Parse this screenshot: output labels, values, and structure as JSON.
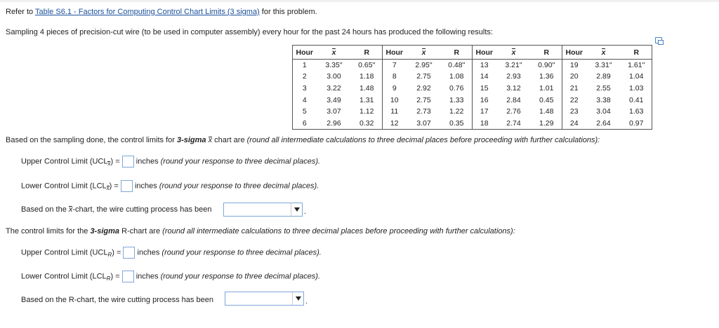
{
  "intro": {
    "prefix": "Refer to",
    "link": "Table S6.1 - Factors for Computing Control Chart Limits (3 sigma)",
    "suffix": "for this problem."
  },
  "problem": "Sampling 4 pieces of precision-cut wire (to be used in computer assembly) every hour for the past 24 hours has produced the following results:",
  "table": {
    "headers": [
      "Hour",
      "x",
      "R"
    ],
    "groups": [
      [
        [
          "1",
          "3.35\"",
          "0.65\""
        ],
        [
          "2",
          "3.00",
          "1.18"
        ],
        [
          "3",
          "3.22",
          "1.48"
        ],
        [
          "4",
          "3.49",
          "1.31"
        ],
        [
          "5",
          "3.07",
          "1.12"
        ],
        [
          "6",
          "2.96",
          "0.32"
        ]
      ],
      [
        [
          "7",
          "2.95\"",
          "0.48\""
        ],
        [
          "8",
          "2.75",
          "1.08"
        ],
        [
          "9",
          "2.92",
          "0.76"
        ],
        [
          "10",
          "2.75",
          "1.33"
        ],
        [
          "11",
          "2.73",
          "1.22"
        ],
        [
          "12",
          "3.07",
          "0.35"
        ]
      ],
      [
        [
          "13",
          "3.21\"",
          "0.90\""
        ],
        [
          "14",
          "2.93",
          "1.36"
        ],
        [
          "15",
          "3.12",
          "1.01"
        ],
        [
          "16",
          "2.84",
          "0.45"
        ],
        [
          "17",
          "2.76",
          "1.48"
        ],
        [
          "18",
          "2.74",
          "1.29"
        ]
      ],
      [
        [
          "19",
          "3.31\"",
          "1.61\""
        ],
        [
          "20",
          "2.89",
          "1.04"
        ],
        [
          "21",
          "2.55",
          "1.03"
        ],
        [
          "22",
          "3.38",
          "0.41"
        ],
        [
          "23",
          "3.04",
          "1.63"
        ],
        [
          "24",
          "2.64",
          "0.97"
        ]
      ]
    ]
  },
  "xchart": {
    "intro_a": "Based on the sampling done, the control limits for ",
    "intro_b": "3-sigma",
    "intro_x": "x",
    "intro_c": " chart are ",
    "intro_d": "(round all intermediate calculations to three decimal places before proceeding with further calculations):",
    "ucl_label": "Upper Control Limit (UCL",
    "ucl_sub": "x",
    "lcl_label": "Lower Control Limit (LCL",
    "lcl_sub": "x",
    "close_eq": ") =",
    "units": "inches",
    "hint": "(round your response to three decimal places).",
    "process_a": "Based on the ",
    "process_x": "x",
    "process_b": "-chart, the wire cutting process has been",
    "process_value": ""
  },
  "rchart": {
    "intro_a": "The control limits for the ",
    "intro_b": "3-sigma",
    "intro_c": " R-chart are ",
    "intro_d": "(round all intermediate calculations to three decimal places before proceeding with further calculations):",
    "ucl_label": "Upper Control Limit (UCL",
    "ucl_sub": "R",
    "lcl_label": "Lower Control Limit (LCL",
    "lcl_sub": "R",
    "close_eq": ") =",
    "units": "inches",
    "hint": "(round your response to three decimal places).",
    "process": "Based on the R-chart, the wire cutting process has been",
    "process_value": ""
  }
}
